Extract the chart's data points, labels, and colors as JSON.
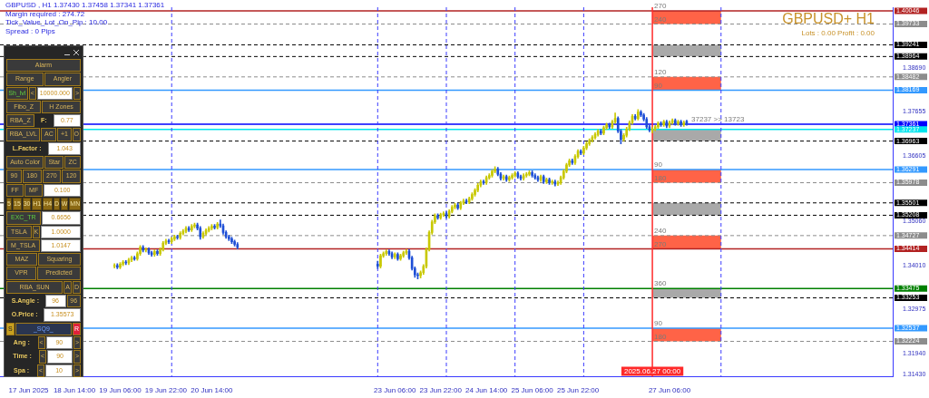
{
  "chart_data": {
    "type": "candlestick",
    "title": "GBPUSD+ H1",
    "subtitle": "Lots : 0.00 Profit : 0.00",
    "colors": [
      "#c8c800",
      "#1e4fd6",
      "#c8c800",
      "#c8c800",
      "#1e4fd6",
      "#c8c800",
      "#c8c800",
      "#1e4fd6",
      "#c8c800",
      "#c8c800",
      "#1e4fd6",
      "#c8c800",
      "#1e4fd6",
      "#1e4fd6",
      "#c8c800",
      "#1e4fd6",
      "#c8c800",
      "#c8c800",
      "#c8c800",
      "#1e4fd6",
      "#c8c800",
      "#c8c800",
      "#1e4fd6",
      "#c8c800",
      "#c8c800",
      "#c8c800",
      "#1e4fd6",
      "#c8c800",
      "#c8c800",
      "#1e4fd6",
      "#1e4fd6",
      "#c8c800",
      "#c8c800",
      "#c8c800",
      "#c8c800",
      "#1e4fd6",
      "#c8c800",
      "#1e4fd6",
      "#1e4fd6",
      "#1e4fd6",
      "#1e4fd6",
      "#1e4fd6",
      "#1e4fd6",
      "#1e4fd6",
      "#1e4fd6",
      "#c8c800",
      "#c8c800",
      "#c8c800",
      "#1e4fd6",
      "#1e4fd6",
      "#c8c800",
      "#1e4fd6",
      "#c8c800",
      "#c8c800",
      "#c8c800",
      "#1e4fd6",
      "#1e4fd6",
      "#1e4fd6",
      "#1e4fd6",
      "#c8c800",
      "#c8c800",
      "#c8c800",
      "#c8c800",
      "#c8c800",
      "#c8c800",
      "#1e4fd6",
      "#c8c800",
      "#c8c800",
      "#1e4fd6",
      "#c8c800",
      "#c8c800",
      "#c8c800",
      "#1e4fd6",
      "#c8c800",
      "#c8c800",
      "#1e4fd6",
      "#c8c800",
      "#c8c800",
      "#c8c800",
      "#c8c800",
      "#c8c800",
      "#1e4fd6",
      "#c8c800",
      "#c8c800",
      "#c8c800",
      "#c8c800",
      "#1e4fd6",
      "#1e4fd6",
      "#c8c800",
      "#1e4fd6",
      "#c8c800",
      "#c8c800",
      "#c8c800",
      "#1e4fd6",
      "#1e4fd6",
      "#c8c800",
      "#c8c800",
      "#c8c800",
      "#1e4fd6",
      "#1e4fd6",
      "#1e4fd6",
      "#c8c800",
      "#1e4fd6",
      "#c8c800",
      "#1e4fd6",
      "#c8c800",
      "#1e4fd6",
      "#c8c800",
      "#c8c800",
      "#c8c800",
      "#c8c800",
      "#c8c800",
      "#1e4fd6",
      "#c8c800",
      "#c8c800",
      "#1e4fd6",
      "#c8c800",
      "#c8c800",
      "#c8c800",
      "#c8c800",
      "#c8c800",
      "#c8c800",
      "#1e4fd6",
      "#c8c800",
      "#c8c800",
      "#1e4fd6",
      "#c8c800",
      "#c8c800",
      "#1e4fd6",
      "#1e4fd6",
      "#c8c800",
      "#c8c800",
      "#c8c800",
      "#c8c800",
      "#1e4fd6",
      "#c8c800",
      "#1e4fd6",
      "#1e4fd6",
      "#1e4fd6",
      "#1e4fd6",
      "#c8c800",
      "#c8c800",
      "#c8c800",
      "#1e4fd6",
      "#c8c800",
      "#1e4fd6",
      "#c8c800",
      "#c8c800",
      "#1e4fd6",
      "#c8c800",
      "#1e4fd6",
      "#c8c800",
      "#1e4fd6"
    ],
    "x": [
      "2025-06-19T04:00",
      "2025-06-19T05:00",
      "2025-06-19T06:00",
      "2025-06-19T07:00",
      "2025-06-19T08:00",
      "2025-06-19T09:00",
      "2025-06-19T10:00",
      "2025-06-19T11:00",
      "2025-06-19T12:00",
      "2025-06-19T13:00",
      "2025-06-19T14:00",
      "2025-06-19T15:00",
      "2025-06-19T16:00",
      "2025-06-19T17:00",
      "2025-06-19T18:00",
      "2025-06-19T19:00",
      "2025-06-19T20:00",
      "2025-06-19T21:00",
      "2025-06-19T22:00",
      "2025-06-19T23:00",
      "2025-06-20T00:00",
      "2025-06-20T01:00",
      "2025-06-20T02:00",
      "2025-06-20T03:00",
      "2025-06-20T04:00",
      "2025-06-20T05:00",
      "2025-06-20T06:00",
      "2025-06-20T07:00",
      "2025-06-20T08:00",
      "2025-06-20T09:00",
      "2025-06-20T10:00",
      "2025-06-20T11:00",
      "2025-06-20T12:00",
      "2025-06-20T13:00",
      "2025-06-20T14:00",
      "2025-06-20T15:00",
      "2025-06-20T16:00",
      "2025-06-20T17:00",
      "2025-06-20T18:00",
      "2025-06-20T19:00",
      "2025-06-20T20:00",
      "2025-06-20T21:00",
      "2025-06-20T22:00",
      "2025-06-20T23:00",
      "2025-06-23T00:00",
      "2025-06-23T01:00",
      "2025-06-23T02:00",
      "2025-06-23T03:00",
      "2025-06-23T04:00",
      "2025-06-23T05:00",
      "2025-06-23T06:00",
      "2025-06-23T07:00",
      "2025-06-23T08:00",
      "2025-06-23T09:00",
      "2025-06-23T10:00",
      "2025-06-23T11:00",
      "2025-06-23T12:00",
      "2025-06-23T13:00",
      "2025-06-23T14:00",
      "2025-06-23T15:00",
      "2025-06-23T16:00",
      "2025-06-23T17:00",
      "2025-06-23T18:00",
      "2025-06-23T19:00",
      "2025-06-23T20:00",
      "2025-06-23T21:00",
      "2025-06-23T22:00",
      "2025-06-23T23:00",
      "2025-06-24T00:00",
      "2025-06-24T01:00",
      "2025-06-24T02:00",
      "2025-06-24T03:00",
      "2025-06-24T04:00",
      "2025-06-24T05:00",
      "2025-06-24T06:00",
      "2025-06-24T07:00",
      "2025-06-24T08:00",
      "2025-06-24T09:00",
      "2025-06-24T10:00",
      "2025-06-24T11:00",
      "2025-06-24T12:00",
      "2025-06-24T13:00",
      "2025-06-24T14:00",
      "2025-06-24T15:00",
      "2025-06-24T16:00",
      "2025-06-24T17:00",
      "2025-06-24T18:00",
      "2025-06-24T19:00",
      "2025-06-24T20:00",
      "2025-06-24T21:00",
      "2025-06-24T22:00",
      "2025-06-24T23:00",
      "2025-06-25T00:00",
      "2025-06-25T01:00",
      "2025-06-25T02:00",
      "2025-06-25T03:00",
      "2025-06-25T04:00",
      "2025-06-25T05:00",
      "2025-06-25T06:00",
      "2025-06-25T07:00",
      "2025-06-25T08:00",
      "2025-06-25T09:00",
      "2025-06-25T10:00",
      "2025-06-25T11:00",
      "2025-06-25T12:00",
      "2025-06-25T13:00",
      "2025-06-25T14:00",
      "2025-06-25T15:00",
      "2025-06-25T16:00",
      "2025-06-25T17:00",
      "2025-06-25T18:00",
      "2025-06-25T19:00",
      "2025-06-25T20:00",
      "2025-06-25T21:00",
      "2025-06-25T22:00",
      "2025-06-25T23:00",
      "2025-06-26T00:00",
      "2025-06-26T01:00",
      "2025-06-26T02:00",
      "2025-06-26T03:00",
      "2025-06-26T04:00",
      "2025-06-26T05:00",
      "2025-06-26T06:00",
      "2025-06-26T07:00",
      "2025-06-26T08:00",
      "2025-06-26T09:00",
      "2025-06-26T10:00",
      "2025-06-26T11:00",
      "2025-06-26T12:00",
      "2025-06-26T13:00",
      "2025-06-26T14:00",
      "2025-06-26T15:00",
      "2025-06-26T16:00",
      "2025-06-26T17:00",
      "2025-06-26T18:00",
      "2025-06-26T19:00",
      "2025-06-26T20:00",
      "2025-06-26T21:00",
      "2025-06-26T22:00",
      "2025-06-26T23:00",
      "2025-06-27T00:00",
      "2025-06-27T01:00",
      "2025-06-27T02:00",
      "2025-06-27T03:00",
      "2025-06-27T04:00",
      "2025-06-27T05:00",
      "2025-06-27T06:00",
      "2025-06-27T07:00",
      "2025-06-27T08:00",
      "2025-06-27T09:00",
      "2025-06-27T10:00",
      "2025-06-27T11:00",
      "2025-06-27T12:00"
    ],
    "ohlc": [
      [
        1.34,
        1.3406,
        1.3396,
        1.3402
      ],
      [
        1.3402,
        1.3406,
        1.3394,
        1.3398
      ],
      [
        1.3398,
        1.3409,
        1.3394,
        1.3405
      ],
      [
        1.3405,
        1.3414,
        1.3401,
        1.341
      ],
      [
        1.341,
        1.3414,
        1.3404,
        1.3408
      ],
      [
        1.3408,
        1.3419,
        1.3404,
        1.3415
      ],
      [
        1.3415,
        1.3424,
        1.3411,
        1.342
      ],
      [
        1.342,
        1.3424,
        1.3414,
        1.3418
      ],
      [
        1.3418,
        1.3434,
        1.3414,
        1.343
      ],
      [
        1.343,
        1.3449,
        1.3426,
        1.3445
      ],
      [
        1.3445,
        1.3449,
        1.3434,
        1.3438
      ],
      [
        1.3438,
        1.3444,
        1.3434,
        1.344
      ],
      [
        1.344,
        1.3444,
        1.3428,
        1.3432
      ],
      [
        1.3432,
        1.3436,
        1.3424,
        1.3428
      ],
      [
        1.3428,
        1.3439,
        1.3424,
        1.3435
      ],
      [
        1.3435,
        1.3439,
        1.3426,
        1.343
      ],
      [
        1.343,
        1.3444,
        1.3426,
        1.344
      ],
      [
        1.344,
        1.3459,
        1.3436,
        1.3455
      ],
      [
        1.3455,
        1.3464,
        1.3451,
        1.346
      ],
      [
        1.346,
        1.3464,
        1.3454,
        1.3458
      ],
      [
        1.3458,
        1.3469,
        1.3454,
        1.3465
      ],
      [
        1.3465,
        1.3474,
        1.3461,
        1.347
      ],
      [
        1.347,
        1.3474,
        1.3464,
        1.3468
      ],
      [
        1.3468,
        1.3482,
        1.3464,
        1.3478
      ],
      [
        1.3478,
        1.3487,
        1.3474,
        1.3483
      ],
      [
        1.3483,
        1.3494,
        1.3479,
        1.349
      ],
      [
        1.349,
        1.3494,
        1.3482,
        1.3486
      ],
      [
        1.3486,
        1.3499,
        1.3482,
        1.3495
      ],
      [
        1.3495,
        1.3502,
        1.3491,
        1.3498
      ],
      [
        1.3498,
        1.3502,
        1.3486,
        1.349
      ],
      [
        1.349,
        1.3494,
        1.3464,
        1.347
      ],
      [
        1.347,
        1.3482,
        1.3466,
        1.3478
      ],
      [
        1.3478,
        1.3489,
        1.3474,
        1.3485
      ],
      [
        1.3485,
        1.3494,
        1.3481,
        1.349
      ],
      [
        1.349,
        1.3499,
        1.3486,
        1.3495
      ],
      [
        1.3495,
        1.3499,
        1.3488,
        1.3492
      ],
      [
        1.3492,
        1.3504,
        1.3488,
        1.35
      ],
      [
        1.35,
        1.351,
        1.3492,
        1.3496
      ],
      [
        1.3496,
        1.35,
        1.3476,
        1.348
      ],
      [
        1.348,
        1.3484,
        1.3466,
        1.347
      ],
      [
        1.347,
        1.3474,
        1.3461,
        1.3465
      ],
      [
        1.3465,
        1.3469,
        1.3454,
        1.3458
      ],
      [
        1.3458,
        1.3462,
        1.3448,
        1.3452
      ],
      [
        1.3452,
        1.3456,
        1.3441,
        1.3445
      ],
      [
        1.3405,
        1.3412,
        1.3395,
        1.34
      ],
      [
        1.34,
        1.3429,
        1.3396,
        1.3425
      ],
      [
        1.3425,
        1.3434,
        1.3421,
        1.343
      ],
      [
        1.343,
        1.3439,
        1.3426,
        1.3435
      ],
      [
        1.3435,
        1.3439,
        1.3426,
        1.343
      ],
      [
        1.343,
        1.3434,
        1.3418,
        1.3422
      ],
      [
        1.3422,
        1.3432,
        1.3418,
        1.3428
      ],
      [
        1.3428,
        1.3432,
        1.3414,
        1.3418
      ],
      [
        1.3418,
        1.3429,
        1.3414,
        1.3425
      ],
      [
        1.3425,
        1.3436,
        1.3421,
        1.3432
      ],
      [
        1.3432,
        1.344,
        1.3428,
        1.3436
      ],
      [
        1.3436,
        1.344,
        1.3416,
        1.342
      ],
      [
        1.342,
        1.3424,
        1.3391,
        1.3395
      ],
      [
        1.3395,
        1.3399,
        1.3374,
        1.338
      ],
      [
        1.338,
        1.3384,
        1.337,
        1.3378
      ],
      [
        1.3378,
        1.3389,
        1.3372,
        1.3385
      ],
      [
        1.3385,
        1.3404,
        1.3381,
        1.34
      ],
      [
        1.34,
        1.3444,
        1.3396,
        1.344
      ],
      [
        1.344,
        1.3484,
        1.3436,
        1.348
      ],
      [
        1.348,
        1.3509,
        1.3476,
        1.3505
      ],
      [
        1.3505,
        1.3524,
        1.3501,
        1.352
      ],
      [
        1.352,
        1.3524,
        1.3511,
        1.3515
      ],
      [
        1.3515,
        1.3526,
        1.3511,
        1.3522
      ],
      [
        1.3522,
        1.3529,
        1.3518,
        1.3525
      ],
      [
        1.3525,
        1.3529,
        1.3514,
        1.3518
      ],
      [
        1.3518,
        1.3534,
        1.3514,
        1.353
      ],
      [
        1.353,
        1.3544,
        1.3526,
        1.354
      ],
      [
        1.354,
        1.3549,
        1.3536,
        1.3545
      ],
      [
        1.3545,
        1.3549,
        1.3534,
        1.3538
      ],
      [
        1.3538,
        1.3554,
        1.3534,
        1.355
      ],
      [
        1.355,
        1.3559,
        1.3546,
        1.3555
      ],
      [
        1.3555,
        1.3559,
        1.3548,
        1.3552
      ],
      [
        1.3552,
        1.3564,
        1.3548,
        1.356
      ],
      [
        1.356,
        1.3574,
        1.3556,
        1.357
      ],
      [
        1.357,
        1.3584,
        1.3566,
        1.358
      ],
      [
        1.358,
        1.3596,
        1.3576,
        1.3592
      ],
      [
        1.3592,
        1.3604,
        1.3588,
        1.36
      ],
      [
        1.36,
        1.3604,
        1.3594,
        1.3598
      ],
      [
        1.3598,
        1.3614,
        1.3594,
        1.361
      ],
      [
        1.361,
        1.3619,
        1.3606,
        1.3615
      ],
      [
        1.3615,
        1.3629,
        1.3611,
        1.3625
      ],
      [
        1.3625,
        1.3636,
        1.3621,
        1.363
      ],
      [
        1.363,
        1.3634,
        1.3614,
        1.3618
      ],
      [
        1.3618,
        1.3622,
        1.3604,
        1.3608
      ],
      [
        1.3608,
        1.3616,
        1.3604,
        1.3612
      ],
      [
        1.3612,
        1.3616,
        1.3601,
        1.3605
      ],
      [
        1.3605,
        1.3614,
        1.3601,
        1.361
      ],
      [
        1.361,
        1.3619,
        1.3606,
        1.3615
      ],
      [
        1.3615,
        1.3624,
        1.3611,
        1.362
      ],
      [
        1.362,
        1.3624,
        1.3608,
        1.3612
      ],
      [
        1.3612,
        1.3616,
        1.3604,
        1.3608
      ],
      [
        1.3608,
        1.3619,
        1.3604,
        1.3615
      ],
      [
        1.3615,
        1.3622,
        1.3611,
        1.3618
      ],
      [
        1.3618,
        1.3626,
        1.3614,
        1.3622
      ],
      [
        1.3622,
        1.3626,
        1.3611,
        1.3615
      ],
      [
        1.3615,
        1.3619,
        1.3606,
        1.361
      ],
      [
        1.361,
        1.3614,
        1.3601,
        1.3605
      ],
      [
        1.3605,
        1.3616,
        1.3601,
        1.3612
      ],
      [
        1.3612,
        1.3616,
        1.3596,
        1.36
      ],
      [
        1.36,
        1.3609,
        1.3596,
        1.3605
      ],
      [
        1.3605,
        1.3609,
        1.3594,
        1.3598
      ],
      [
        1.3598,
        1.3604,
        1.3594,
        1.36
      ],
      [
        1.36,
        1.3604,
        1.359,
        1.3595
      ],
      [
        1.3595,
        1.3602,
        1.3591,
        1.3598
      ],
      [
        1.3598,
        1.3614,
        1.3594,
        1.361
      ],
      [
        1.361,
        1.3629,
        1.3606,
        1.3625
      ],
      [
        1.3625,
        1.3644,
        1.3621,
        1.364
      ],
      [
        1.364,
        1.3654,
        1.3636,
        1.365
      ],
      [
        1.365,
        1.3654,
        1.3641,
        1.3645
      ],
      [
        1.3645,
        1.3664,
        1.3641,
        1.366
      ],
      [
        1.366,
        1.3676,
        1.3656,
        1.3672
      ],
      [
        1.3672,
        1.3676,
        1.3664,
        1.3668
      ],
      [
        1.3668,
        1.3684,
        1.3664,
        1.368
      ],
      [
        1.368,
        1.3694,
        1.3676,
        1.369
      ],
      [
        1.369,
        1.3702,
        1.3686,
        1.3698
      ],
      [
        1.3698,
        1.3709,
        1.3694,
        1.3705
      ],
      [
        1.3705,
        1.3716,
        1.3701,
        1.3712
      ],
      [
        1.3712,
        1.3724,
        1.3708,
        1.372
      ],
      [
        1.372,
        1.3724,
        1.3711,
        1.3715
      ],
      [
        1.3715,
        1.3732,
        1.3711,
        1.3728
      ],
      [
        1.3728,
        1.3739,
        1.3724,
        1.3735
      ],
      [
        1.3735,
        1.3739,
        1.3726,
        1.373
      ],
      [
        1.373,
        1.3746,
        1.3726,
        1.3742
      ],
      [
        1.3742,
        1.3763,
        1.3738,
        1.375
      ],
      [
        1.375,
        1.3754,
        1.3716,
        1.372
      ],
      [
        1.372,
        1.3724,
        1.369,
        1.37
      ],
      [
        1.37,
        1.3714,
        1.3696,
        1.371
      ],
      [
        1.371,
        1.3729,
        1.3706,
        1.3725
      ],
      [
        1.3725,
        1.3744,
        1.3721,
        1.374
      ],
      [
        1.374,
        1.3759,
        1.3736,
        1.3755
      ],
      [
        1.3755,
        1.3759,
        1.3746,
        1.375
      ],
      [
        1.375,
        1.3771,
        1.3746,
        1.3765
      ],
      [
        1.3765,
        1.3769,
        1.3754,
        1.3758
      ],
      [
        1.3758,
        1.3762,
        1.3744,
        1.3748
      ],
      [
        1.3748,
        1.3752,
        1.3726,
        1.373
      ],
      [
        1.373,
        1.3734,
        1.3718,
        1.3722
      ],
      [
        1.3722,
        1.3729,
        1.3716,
        1.3725
      ],
      [
        1.3725,
        1.3734,
        1.3721,
        1.373
      ],
      [
        1.373,
        1.3742,
        1.3726,
        1.3738
      ],
      [
        1.3738,
        1.3742,
        1.3731,
        1.3735
      ],
      [
        1.3735,
        1.3746,
        1.3731,
        1.3742
      ],
      [
        1.3742,
        1.3746,
        1.3728,
        1.3732
      ],
      [
        1.3732,
        1.3744,
        1.3728,
        1.374
      ],
      [
        1.374,
        1.3749,
        1.3736,
        1.3745
      ],
      [
        1.3745,
        1.3749,
        1.3734,
        1.3738
      ],
      [
        1.3738,
        1.3746,
        1.3734,
        1.3742
      ],
      [
        1.3742,
        1.3746,
        1.3731,
        1.3735
      ],
      [
        1.3735,
        1.3744,
        1.3731,
        1.374
      ],
      [
        1.3743,
        1.3746,
        1.3734,
        1.3736
      ]
    ],
    "xlim": [
      "2025-06-17T12:00",
      "2025-06-30T12:00"
    ],
    "xticks": [
      {
        "value": "2025-06-17T22:00",
        "label": "17 Jun 2025"
      },
      {
        "value": "2025-06-18T14:00",
        "label": "18 Jun 14:00"
      },
      {
        "value": "2025-06-19T06:00",
        "label": "19 Jun 06:00"
      },
      {
        "value": "2025-06-19T22:00",
        "label": "19 Jun 22:00"
      },
      {
        "value": "2025-06-20T14:00",
        "label": "20 Jun 14:00"
      },
      {
        "value": "2025-06-23T06:00",
        "label": "23 Jun 06:00"
      },
      {
        "value": "2025-06-23T22:00",
        "label": "23 Jun 22:00"
      },
      {
        "value": "2025-06-24T14:00",
        "label": "24 Jun 14:00"
      },
      {
        "value": "2025-06-25T06:00",
        "label": "25 Jun 06:00"
      },
      {
        "value": "2025-06-25T22:00",
        "label": "25 Jun 22:00"
      },
      {
        "value": "2025-06-27T06:00",
        "label": "27 Jun 06:00"
      }
    ],
    "ylim": [
      1.3139,
      1.4013
    ],
    "yticks": [
      {
        "value": 1.3143,
        "label": "1.31430"
      },
      {
        "value": 1.3194,
        "label": "1.31940"
      },
      {
        "value": 1.32975,
        "label": "1.32975"
      },
      {
        "value": 1.3401,
        "label": "1.34010"
      },
      {
        "value": 1.3506,
        "label": "1.35060"
      },
      {
        "value": 1.36605,
        "label": "1.36605"
      },
      {
        "value": 1.37655,
        "label": "1.37655"
      },
      {
        "value": 1.3869,
        "label": "1.38690"
      }
    ],
    "ref_lines": [
      {
        "axis": "y",
        "value": 1.40046,
        "label": "1.40046",
        "color": "#b22222",
        "line_style": "solid"
      },
      {
        "axis": "y",
        "value": 1.39733,
        "label": "1.39733",
        "color": "#8c8c8c",
        "line_style": "dashed"
      },
      {
        "axis": "y",
        "value": 1.39241,
        "label": "1.39241",
        "color": "#000000",
        "line_style": "dashed"
      },
      {
        "axis": "y",
        "value": 1.38964,
        "label": "1.38964",
        "color": "#000000",
        "line_style": "dashed"
      },
      {
        "axis": "y",
        "value": 1.38482,
        "label": "1.38482",
        "color": "#8c8c8c",
        "line_style": "dashed"
      },
      {
        "axis": "y",
        "value": 1.38169,
        "label": "1.38169",
        "color": "#3399ff",
        "line_style": "solid"
      },
      {
        "axis": "y",
        "value": 1.37361,
        "label": "1.37361",
        "color": "#0000ff",
        "line_style": "solid"
      },
      {
        "axis": "y",
        "value": 1.37237,
        "label": "1.37237",
        "color": "#00e5ee",
        "line_style": "solid"
      },
      {
        "axis": "y",
        "value": 1.36963,
        "label": "1.36963",
        "color": "#000000",
        "line_style": "dashed"
      },
      {
        "axis": "y",
        "value": 1.36291,
        "label": "1.36291",
        "color": "#3399ff",
        "line_style": "solid"
      },
      {
        "axis": "y",
        "value": 1.35978,
        "label": "1.35978",
        "color": "#8c8c8c",
        "line_style": "dashed"
      },
      {
        "axis": "y",
        "value": 1.35501,
        "label": "1.35501",
        "color": "#000000",
        "line_style": "dashed"
      },
      {
        "axis": "y",
        "value": 1.35208,
        "label": "1.35208",
        "color": "#000000",
        "line_style": "dashed"
      },
      {
        "axis": "y",
        "value": 1.34727,
        "label": "1.34727",
        "color": "#8c8c8c",
        "line_style": "dashed"
      },
      {
        "axis": "y",
        "value": 1.34414,
        "label": "1.34414",
        "color": "#b22222",
        "line_style": "solid"
      },
      {
        "axis": "y",
        "value": 1.33475,
        "label": "1.33475",
        "color": "#008000",
        "line_style": "solid"
      },
      {
        "axis": "y",
        "value": 1.33253,
        "label": "1.33253",
        "color": "#000000",
        "line_style": "dashed"
      },
      {
        "axis": "y",
        "value": 1.32537,
        "label": "1.32537",
        "color": "#3399ff",
        "line_style": "solid"
      },
      {
        "axis": "y",
        "value": 1.32224,
        "label": "1.32224",
        "color": "#8c8c8c",
        "line_style": "dashed"
      },
      {
        "axis": "x",
        "value": "2025-06-20T00:00",
        "color": "#3b3bff",
        "line_style": "dashed"
      },
      {
        "axis": "x",
        "value": "2025-06-23T00:00",
        "color": "#3b3bff",
        "line_style": "dashed"
      },
      {
        "axis": "x",
        "value": "2025-06-24T00:00",
        "color": "#3b3bff",
        "line_style": "dashed"
      },
      {
        "axis": "x",
        "value": "2025-06-25T00:00",
        "color": "#3b3bff",
        "line_style": "dashed"
      },
      {
        "axis": "x",
        "value": "2025-06-26T00:00",
        "color": "#3b3bff",
        "line_style": "dashed"
      },
      {
        "axis": "x",
        "value": "2025-06-27T00:00",
        "label": "2025.06.27 00:00",
        "color": "#ff2a2a",
        "line_style": "solid"
      },
      {
        "axis": "x",
        "value": "2025-06-28T00:00",
        "color": "#3b3bff",
        "line_style": "dashed"
      }
    ],
    "bands": [
      {
        "axis": "y",
        "from": 1.39733,
        "to": 1.40046,
        "color": "#ff6347"
      },
      {
        "axis": "y",
        "from": 1.38964,
        "to": 1.39241,
        "color": "#a9a9a9"
      },
      {
        "axis": "y",
        "from": 1.38169,
        "to": 1.38482,
        "color": "#ff6347"
      },
      {
        "axis": "y",
        "from": 1.36963,
        "to": 1.37237,
        "color": "#a9a9a9"
      },
      {
        "axis": "y",
        "from": 1.35978,
        "to": 1.36291,
        "color": "#ff6347"
      },
      {
        "axis": "y",
        "from": 1.35208,
        "to": 1.35501,
        "color": "#a9a9a9"
      },
      {
        "axis": "y",
        "from": 1.34414,
        "to": 1.34727,
        "color": "#ff6347"
      },
      {
        "axis": "y",
        "from": 1.33253,
        "to": 1.33475,
        "color": "#a9a9a9"
      },
      {
        "axis": "y",
        "from": 1.32224,
        "to": 1.32537,
        "color": "#ff6347"
      }
    ],
    "annotations": [
      "GBPUSD , H1  1.37430 1.37458 1.37341 1.37361",
      "Margin required : 274.72",
      "Tick_Value_Lot_On_Pip : 10.00",
      "Spread : 0  Pips",
      "Alarm",
      "Range",
      "Angler",
      "Sh_lvl",
      "<",
      "10000.000",
      ">",
      "Fibo_Z",
      "H Zones",
      "RBA_Z",
      "F:",
      "0.77",
      "RBA_LVL",
      "AC",
      "+1",
      "O",
      "L.Factor :",
      "1.043",
      "Auto Color",
      "Star",
      "ZC",
      "90",
      "180",
      "270",
      "120",
      "FF",
      "MF",
      "0.100",
      "5",
      "15",
      "30",
      "H1",
      "H4",
      "D",
      "W",
      "MN",
      "EXC_TR",
      "0.6656",
      "TSLA",
      "K",
      "1.0000",
      "M_TSLA",
      "1.0147",
      "MAZ",
      "Squaring",
      "VPR",
      "Predicted",
      "RBA_SUN",
      "A",
      "D",
      "S.Angle :",
      "96",
      "96",
      "O.Price :",
      "1.35573",
      "S",
      "_SQ9_",
      "R",
      "Ang :",
      "<",
      "90",
      ">",
      "Time :",
      "<",
      "90",
      ">",
      "Spa :",
      "<",
      "10",
      ">",
      {
        "text": "270",
        "x": "2025-06-27T00:00",
        "y": 1.40046
      },
      {
        "text": "240",
        "x": "2025-06-27T00:00",
        "y": 1.39733
      },
      {
        "text": "120",
        "x": "2025-06-27T00:00",
        "y": 1.38482
      },
      {
        "text": "90",
        "x": "2025-06-27T00:00",
        "y": 1.38169
      },
      {
        "text": "90",
        "x": "2025-06-27T00:00",
        "y": 1.36291
      },
      {
        "text": "180",
        "x": "2025-06-27T00:00",
        "y": 1.35978
      },
      {
        "text": "240",
        "x": "2025-06-27T00:00",
        "y": 1.34727
      },
      {
        "text": "270",
        "x": "2025-06-27T00:00",
        "y": 1.34414
      },
      {
        "text": "360",
        "x": "2025-06-27T00:00",
        "y": 1.33475
      },
      {
        "text": "90",
        "x": "2025-06-27T00:00",
        "y": 1.32537
      },
      {
        "text": "180",
        "x": "2025-06-27T00:00",
        "y": 1.32224
      },
      {
        "text": "37237 >> 13723",
        "x": "2025-06-27T13:00",
        "y": 1.37361
      }
    ],
    "legend": false,
    "grid": false
  }
}
